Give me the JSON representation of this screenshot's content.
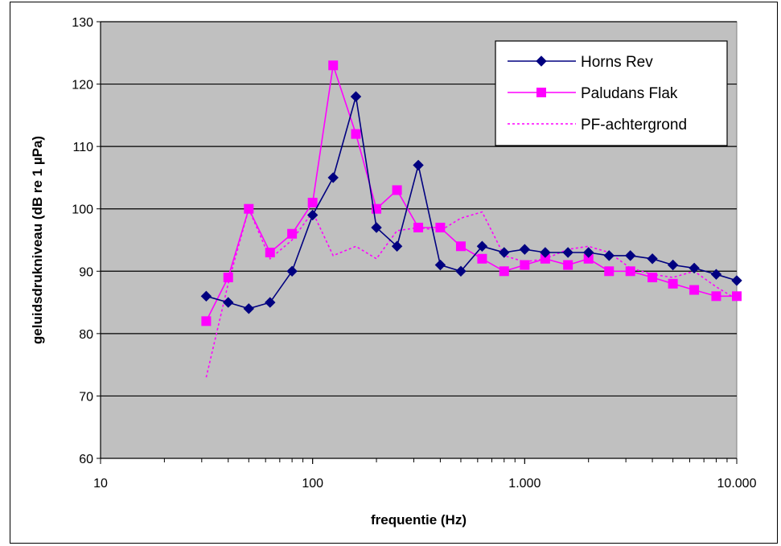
{
  "chart_data": {
    "type": "line",
    "xlabel": "frequentie (Hz)",
    "ylabel": "geluidsdrukniveau (dB re 1 µPa)",
    "x_scale": "log",
    "xlim": [
      10,
      10000
    ],
    "ylim": [
      60,
      130
    ],
    "x_ticks": [
      10,
      100,
      1000,
      10000
    ],
    "x_tick_labels": [
      "10",
      "100",
      "1.000",
      "10.000"
    ],
    "y_ticks": [
      60,
      70,
      80,
      90,
      100,
      110,
      120,
      130
    ],
    "y_tick_labels": [
      "60",
      "70",
      "80",
      "90",
      "100",
      "110",
      "120",
      "130"
    ],
    "grid": "horizontal",
    "legend_position": "top-right",
    "x": [
      31.5,
      40,
      50,
      63,
      80,
      100,
      125,
      160,
      200,
      250,
      315,
      400,
      500,
      630,
      800,
      1000,
      1250,
      1600,
      2000,
      2500,
      3150,
      4000,
      5000,
      6300,
      8000,
      10000
    ],
    "series": [
      {
        "name": "Horns Rev",
        "color": "#000080",
        "marker": "diamond",
        "line_style": "solid",
        "values": [
          86,
          85,
          84,
          85,
          90,
          99,
          105,
          118,
          97,
          94,
          107,
          91,
          90,
          94,
          93,
          93.5,
          93,
          93,
          93,
          92.5,
          92.5,
          92,
          91,
          90.5,
          89.5,
          88.5
        ]
      },
      {
        "name": "Paludans Flak",
        "color": "#FF00FF",
        "marker": "square",
        "line_style": "solid",
        "values": [
          82,
          89,
          100,
          93,
          96,
          101,
          123,
          112,
          100,
          103,
          97,
          97,
          94,
          92,
          90,
          91,
          92,
          91,
          92,
          90,
          90,
          89,
          88,
          87,
          86,
          86
        ]
      },
      {
        "name": "PF-achtergrond",
        "color": "#FF00FF",
        "marker": "none",
        "line_style": "dotted",
        "values": [
          73,
          88,
          100,
          92,
          95,
          99.5,
          92.5,
          94,
          92,
          96.5,
          97,
          96.5,
          98.5,
          99.5,
          92.5,
          91.5,
          92,
          93.5,
          94,
          93,
          90.5,
          89.5,
          89,
          90,
          87.5,
          85.5
        ]
      }
    ]
  }
}
